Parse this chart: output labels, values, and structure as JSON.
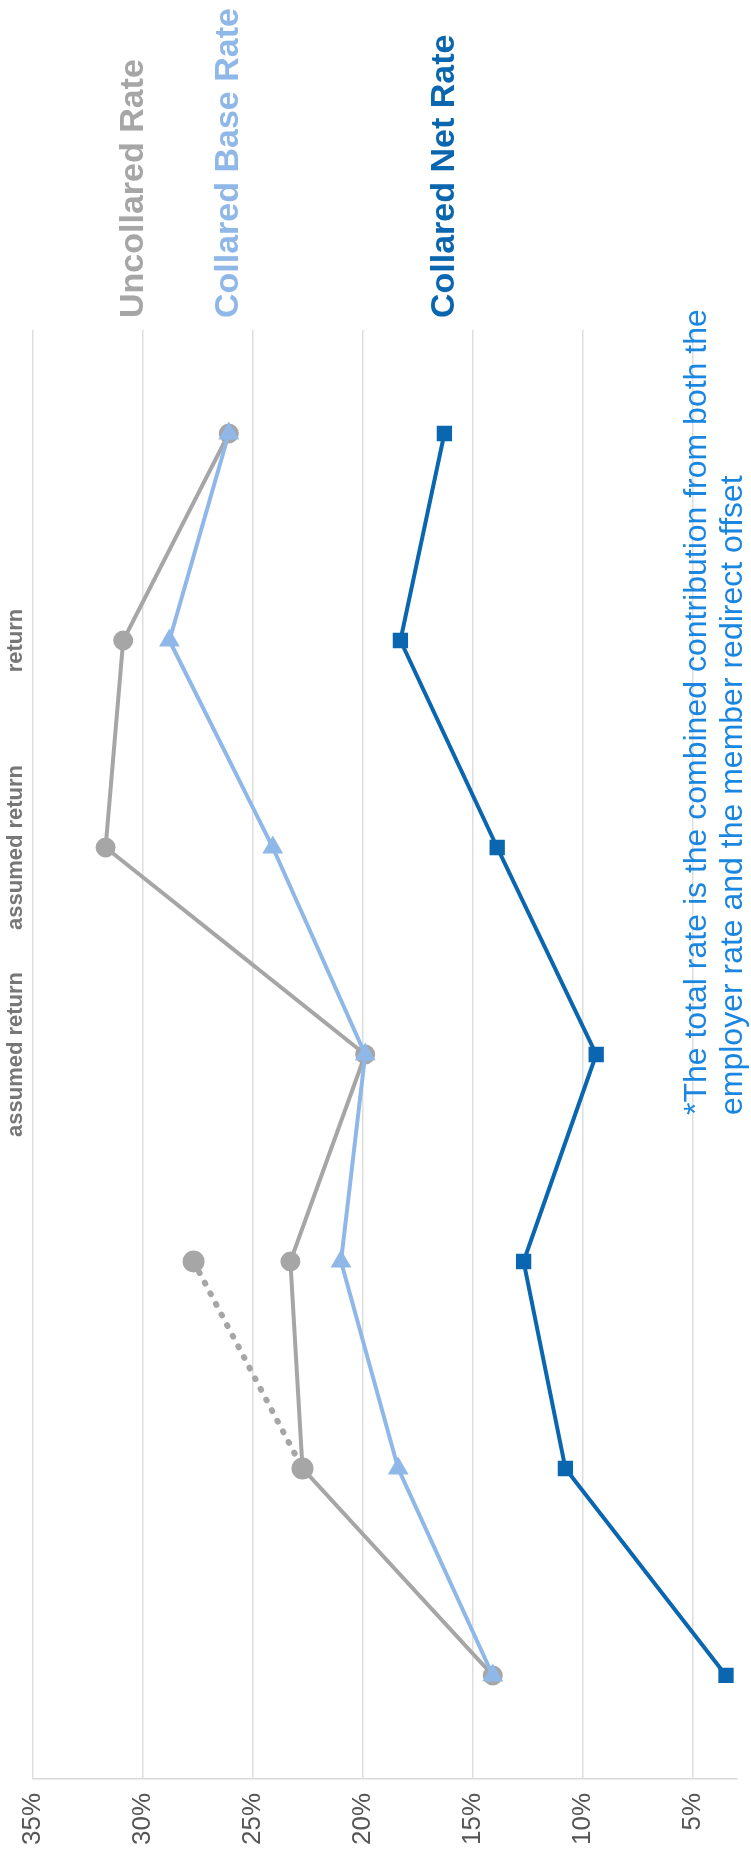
{
  "chart_data": {
    "type": "line",
    "categories": [
      null,
      "return",
      "assumed return",
      "assumed return",
      null,
      null,
      null
    ],
    "series": [
      {
        "name": "Uncollared Rate",
        "color": "#a6a6a6",
        "marker": "circle",
        "values": [
          26.1,
          30.9,
          31.7,
          19.9,
          23.3,
          22.75,
          14.1
        ]
      },
      {
        "name": "Collared Base Rate",
        "color": "#8fb8e8",
        "marker": "triangle",
        "values": [
          26.1,
          28.8,
          24.1,
          19.9,
          21.0,
          18.4,
          14.1
        ]
      },
      {
        "name": "Collared Net Rate",
        "color": "#0b66b0",
        "marker": "square",
        "values": [
          16.3,
          18.3,
          13.9,
          9.4,
          12.7,
          10.8,
          3.5
        ]
      },
      {
        "color": "#a6a6a6",
        "marker": "circle",
        "line_style": "dotted",
        "values": [
          null,
          null,
          null,
          null,
          27.7,
          22.75,
          null
        ]
      }
    ],
    "orientation": "horizontal",
    "xlim": [
      35,
      3
    ],
    "xticks": [
      {
        "value": 5,
        "label": "5%"
      },
      {
        "value": 10,
        "label": "10%"
      },
      {
        "value": 15,
        "label": "15%"
      },
      {
        "value": 20,
        "label": "20%"
      },
      {
        "value": 25,
        "label": "25%"
      },
      {
        "value": 30,
        "label": "30%"
      },
      {
        "value": 35,
        "label": "35%"
      }
    ],
    "grid": "x",
    "legend": false,
    "annotations": [
      "*The total rate is the combined contribution from both the employer rate and the member redirect offset"
    ]
  }
}
